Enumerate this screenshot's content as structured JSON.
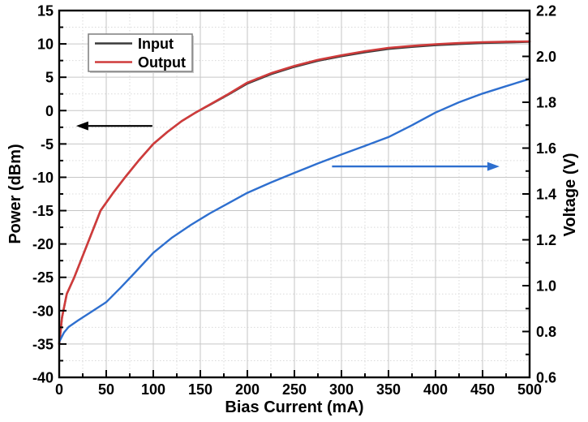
{
  "chart_data": {
    "type": "line",
    "title": "",
    "x_axis": {
      "label": "Bias Current (mA)",
      "min": 0,
      "max": 500,
      "major_ticks": [
        0,
        50,
        100,
        150,
        200,
        250,
        300,
        350,
        400,
        450,
        500
      ],
      "major_tick_labels": [
        "0",
        "50",
        "100",
        "150",
        "200",
        "250",
        "300",
        "350",
        "400",
        "450",
        "500"
      ],
      "minor_step": 25
    },
    "y_left": {
      "label": "Power (dBm)",
      "min": -40,
      "max": 15,
      "major_ticks": [
        15,
        10,
        5,
        0,
        -5,
        -10,
        -15,
        -20,
        -25,
        -30,
        -35,
        -40
      ],
      "major_tick_labels": [
        "15",
        "10",
        "5",
        "0",
        "-5",
        "-10",
        "-15",
        "-20",
        "-25",
        "-30",
        "-35",
        "-40"
      ],
      "minor_step": 2.5
    },
    "y_right": {
      "label": "Voltage (V)",
      "min": 0.6,
      "max": 2.2,
      "major_ticks": [
        2.2,
        2.0,
        1.8,
        1.6,
        1.4,
        1.2,
        1.0,
        0.8,
        0.6
      ],
      "major_tick_labels": [
        "2.2",
        "2.0",
        "1.8",
        "1.6",
        "1.4",
        "1.2",
        "1.0",
        "0.8",
        "0.6"
      ],
      "minor_step": 0.1
    },
    "grid": {
      "major": true,
      "minor": true,
      "major_color": "#c6c6c6",
      "minor_color": "#d9d9d9"
    },
    "legend": {
      "position": "top-left",
      "entries": [
        {
          "label": "Input",
          "color": "#3a3a3a"
        },
        {
          "label": "Output",
          "color": "#cf3b3b"
        }
      ]
    },
    "series": [
      {
        "name": "Input",
        "axis": "left",
        "color": "#3a3a3a",
        "width": 2.4,
        "x": [
          0,
          3,
          8,
          16,
          30,
          44,
          57,
          70,
          85,
          100,
          115,
          130,
          145,
          160,
          180,
          200,
          225,
          250,
          275,
          300,
          325,
          350,
          375,
          400,
          425,
          450,
          475,
          500
        ],
        "y": [
          -35,
          -31,
          -27.5,
          -25,
          -20,
          -15,
          -12.4,
          -10,
          -7.4,
          -5,
          -3.2,
          -1.6,
          -0.3,
          0.85,
          2.4,
          4.05,
          5.45,
          6.55,
          7.45,
          8.15,
          8.75,
          9.25,
          9.55,
          9.8,
          9.98,
          10.12,
          10.22,
          10.3
        ]
      },
      {
        "name": "Output",
        "axis": "left",
        "color": "#cf3b3b",
        "width": 2.6,
        "x": [
          0,
          3,
          8,
          16,
          30,
          44,
          57,
          70,
          85,
          100,
          115,
          130,
          145,
          160,
          180,
          200,
          225,
          250,
          275,
          300,
          325,
          350,
          375,
          400,
          425,
          450,
          475,
          500
        ],
        "y": [
          -35,
          -31,
          -27.5,
          -25,
          -20,
          -15,
          -12.4,
          -10,
          -7.4,
          -5,
          -3.2,
          -1.6,
          -0.3,
          0.9,
          2.5,
          4.2,
          5.6,
          6.7,
          7.6,
          8.3,
          8.9,
          9.4,
          9.7,
          9.95,
          10.12,
          10.25,
          10.33,
          10.38
        ]
      },
      {
        "name": "Voltage",
        "axis": "right",
        "color": "#2e6fcf",
        "width": 2.4,
        "x": [
          0,
          5,
          10,
          20,
          35,
          50,
          65,
          80,
          100,
          120,
          140,
          160,
          180,
          200,
          225,
          250,
          275,
          300,
          325,
          350,
          375,
          400,
          425,
          450,
          475,
          500
        ],
        "y": [
          0.755,
          0.795,
          0.82,
          0.848,
          0.888,
          0.928,
          0.99,
          1.055,
          1.143,
          1.21,
          1.265,
          1.315,
          1.36,
          1.405,
          1.45,
          1.492,
          1.533,
          1.572,
          1.61,
          1.648,
          1.7,
          1.755,
          1.8,
          1.838,
          1.87,
          1.902
        ]
      }
    ],
    "annotations": [
      {
        "type": "arrow",
        "name": "left-axis-arrow",
        "color": "#000000",
        "axis": "left",
        "y": -2.3,
        "x_from": 99,
        "x_to": 18,
        "width": 2.2
      },
      {
        "type": "arrow",
        "name": "right-axis-arrow",
        "color": "#2e6fcf",
        "axis": "right",
        "y": 1.52,
        "x_from": 290,
        "x_to": 468,
        "width": 2.4
      }
    ]
  }
}
